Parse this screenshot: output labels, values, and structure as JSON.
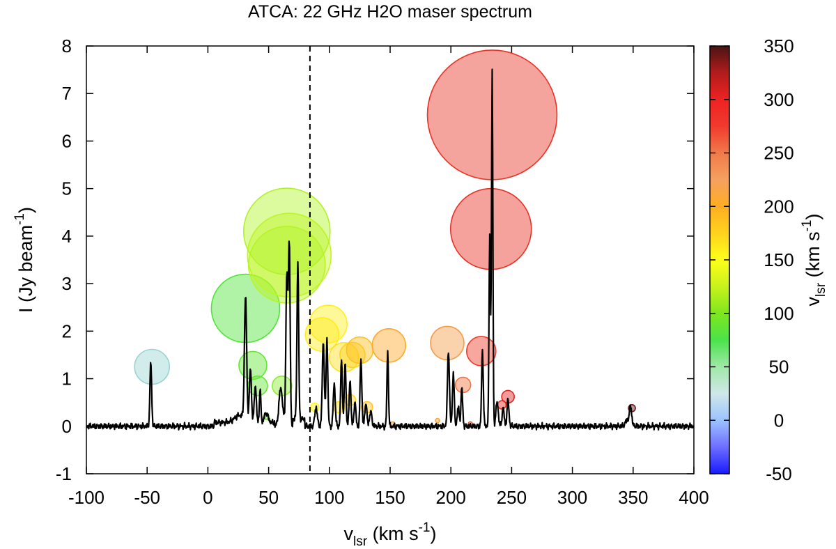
{
  "chart_data": {
    "type": "line",
    "title": "ATCA: 22 GHz H2O maser spectrum",
    "xlabel": {
      "main": "v",
      "sub": "lsr",
      "units_pre": " (km s",
      "units_sup": "-1",
      "units_post": ")"
    },
    "ylabel": {
      "main": "I (Jy beam",
      "sup": "-1",
      "post": ")"
    },
    "colorbar_label": {
      "main": "v",
      "sub": "lsr",
      "units_pre": " (km s",
      "units_sup": "-1",
      "units_post": ")"
    },
    "xlim": [
      -100,
      400
    ],
    "ylim": [
      -1,
      8
    ],
    "xticks": [
      -100,
      -50,
      0,
      50,
      100,
      150,
      200,
      250,
      300,
      350,
      400
    ],
    "yticks": [
      -1,
      0,
      1,
      2,
      3,
      4,
      5,
      6,
      7,
      8
    ],
    "colorbar": {
      "range": [
        -50,
        350
      ],
      "ticks": [
        -50,
        0,
        50,
        100,
        150,
        200,
        250,
        300,
        350
      ]
    },
    "systemic_velocity": 84,
    "spectrum_peaks": [
      {
        "v": -47,
        "i": 1.35,
        "w": 0.7
      },
      {
        "v": 26,
        "i": 0.15,
        "w": 4
      },
      {
        "v": 31,
        "i": 2.6,
        "w": 0.9
      },
      {
        "v": 35,
        "i": 1.15,
        "w": 0.8
      },
      {
        "v": 39,
        "i": 0.8,
        "w": 0.8
      },
      {
        "v": 43,
        "i": 0.7,
        "w": 0.6
      },
      {
        "v": 48,
        "i": 0.2,
        "w": 1.5
      },
      {
        "v": 60,
        "i": 0.8,
        "w": 1.5
      },
      {
        "v": 65,
        "i": 3.2,
        "w": 0.8
      },
      {
        "v": 67,
        "i": 3.85,
        "w": 0.7
      },
      {
        "v": 74,
        "i": 3.3,
        "w": 0.7
      },
      {
        "v": 89,
        "i": 0.4,
        "w": 1
      },
      {
        "v": 95,
        "i": 1.8,
        "w": 0.8
      },
      {
        "v": 98,
        "i": 1.85,
        "w": 0.7
      },
      {
        "v": 104,
        "i": 0.9,
        "w": 0.8
      },
      {
        "v": 110,
        "i": 1.4,
        "w": 0.7
      },
      {
        "v": 113,
        "i": 1.35,
        "w": 0.7
      },
      {
        "v": 117,
        "i": 1.0,
        "w": 0.7
      },
      {
        "v": 121,
        "i": 0.5,
        "w": 0.8
      },
      {
        "v": 126,
        "i": 1.45,
        "w": 0.7
      },
      {
        "v": 130,
        "i": 0.5,
        "w": 0.8
      },
      {
        "v": 134,
        "i": 0.3,
        "w": 1
      },
      {
        "v": 148,
        "i": 1.6,
        "w": 0.6
      },
      {
        "v": 198,
        "i": 1.6,
        "w": 0.8
      },
      {
        "v": 202,
        "i": 1.15,
        "w": 0.7
      },
      {
        "v": 206,
        "i": 0.4,
        "w": 0.8
      },
      {
        "v": 209,
        "i": 0.8,
        "w": 0.7
      },
      {
        "v": 226,
        "i": 1.6,
        "w": 0.7
      },
      {
        "v": 232,
        "i": 4.0,
        "w": 0.6
      },
      {
        "v": 234,
        "i": 7.5,
        "w": 0.55
      },
      {
        "v": 238,
        "i": 0.5,
        "w": 1
      },
      {
        "v": 243,
        "i": 0.4,
        "w": 0.8
      },
      {
        "v": 247,
        "i": 0.55,
        "w": 0.8
      },
      {
        "v": 346,
        "i": 0.15,
        "w": 2
      },
      {
        "v": 348,
        "i": 0.35,
        "w": 0.8
      }
    ],
    "masers": [
      {
        "v": -46,
        "i": 1.25,
        "r": 25,
        "c": 8
      },
      {
        "v": 31,
        "i": 2.48,
        "r": 49,
        "c": 55
      },
      {
        "v": 37,
        "i": 1.28,
        "r": 20,
        "c": 60
      },
      {
        "v": 41,
        "i": 0.85,
        "r": 14,
        "c": 60
      },
      {
        "v": 48,
        "i": 0.2,
        "r": 4,
        "c": 60
      },
      {
        "v": 61,
        "i": 0.85,
        "r": 14,
        "c": 70
      },
      {
        "v": 67,
        "i": 3.6,
        "r": 60,
        "c": 85
      },
      {
        "v": 65,
        "i": 3.4,
        "r": 55,
        "c": 82
      },
      {
        "v": 65,
        "i": 4.1,
        "r": 62,
        "c": 80
      },
      {
        "v": 88,
        "i": 0.4,
        "r": 6,
        "c": 105
      },
      {
        "v": 99,
        "i": 2.15,
        "r": 27,
        "c": 110
      },
      {
        "v": 94,
        "i": 1.93,
        "r": 24,
        "c": 112
      },
      {
        "v": 108,
        "i": 0.4,
        "r": 8,
        "c": 115
      },
      {
        "v": 112,
        "i": 1.45,
        "r": 21,
        "c": 120
      },
      {
        "v": 119,
        "i": 1.5,
        "r": 18,
        "c": 128
      },
      {
        "v": 117,
        "i": 0.55,
        "r": 8,
        "c": 125
      },
      {
        "v": 125,
        "i": 1.6,
        "r": 19,
        "c": 140
      },
      {
        "v": 131,
        "i": 0.4,
        "r": 8,
        "c": 135
      },
      {
        "v": 149,
        "i": 1.7,
        "r": 24,
        "c": 160
      },
      {
        "v": 152,
        "i": 0.05,
        "r": 3,
        "c": 170
      },
      {
        "v": 189,
        "i": 0.12,
        "r": 3,
        "c": 175
      },
      {
        "v": 197,
        "i": 1.75,
        "r": 24,
        "c": 190
      },
      {
        "v": 210,
        "i": 0.87,
        "r": 11,
        "c": 220
      },
      {
        "v": 216,
        "i": 0.05,
        "r": 3,
        "c": 230
      },
      {
        "v": 225,
        "i": 1.58,
        "r": 21,
        "c": 250
      },
      {
        "v": 234,
        "i": 6.55,
        "r": 93,
        "c": 265
      },
      {
        "v": 233,
        "i": 4.15,
        "r": 58,
        "c": 268
      },
      {
        "v": 242,
        "i": 0.45,
        "r": 6,
        "c": 275
      },
      {
        "v": 247,
        "i": 0.62,
        "r": 9,
        "c": 290
      },
      {
        "v": 349,
        "i": 0.38,
        "r": 5,
        "c": 340
      }
    ]
  }
}
